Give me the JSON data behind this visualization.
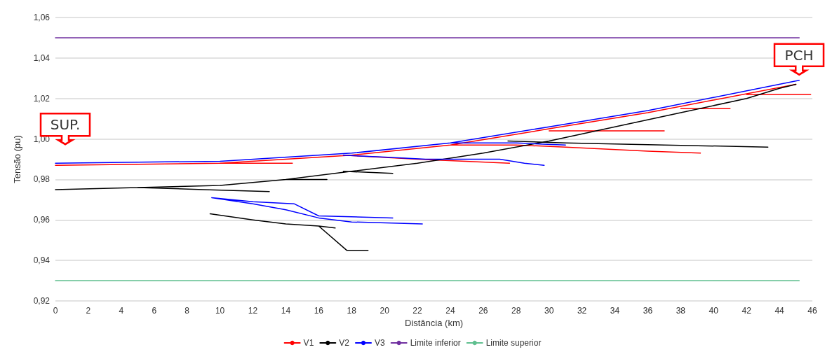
{
  "chart_data": {
    "type": "line",
    "xlabel": "Distância (km)",
    "ylabel": "Tensão (pu)",
    "xlim": [
      0,
      46
    ],
    "xticks": [
      0,
      2,
      4,
      6,
      8,
      10,
      12,
      14,
      16,
      18,
      20,
      22,
      24,
      26,
      28,
      30,
      32,
      34,
      36,
      38,
      40,
      42,
      44,
      46
    ],
    "ylim": [
      0.92,
      1.06
    ],
    "yticks": [
      {
        "value": 0.92,
        "label": "0,92"
      },
      {
        "value": 0.94,
        "label": "0,94"
      },
      {
        "value": 0.96,
        "label": "0,96"
      },
      {
        "value": 0.98,
        "label": "0,98"
      },
      {
        "value": 1.0,
        "label": "1,00"
      },
      {
        "value": 1.02,
        "label": "1,02"
      },
      {
        "value": 1.04,
        "label": "1,04"
      },
      {
        "value": 1.06,
        "label": "1,06"
      }
    ],
    "grid": "y",
    "legend": "bottom",
    "marker": "none",
    "line_style": "solid",
    "series": [
      {
        "name": "V1",
        "color": "#ff0000",
        "x": [
          0,
          10,
          14.4,
          null,
          10,
          18,
          24,
          30,
          36,
          45,
          null,
          17.5,
          22,
          27.6,
          null,
          24,
          28,
          31,
          36,
          39.2,
          null,
          30,
          37,
          null,
          38,
          41,
          null,
          42,
          45.9
        ],
        "values": [
          0.987,
          0.988,
          0.988,
          null,
          0.988,
          0.992,
          0.997,
          1.005,
          1.013,
          1.027,
          null,
          0.992,
          0.99,
          0.988,
          null,
          0.997,
          0.997,
          0.996,
          0.994,
          0.993,
          null,
          1.004,
          1.004,
          null,
          1.015,
          1.015,
          null,
          1.022,
          1.022
        ]
      },
      {
        "name": "V2",
        "color": "#000000",
        "x": [
          0,
          5,
          10,
          14,
          18,
          22,
          26,
          30,
          34,
          38,
          42,
          44,
          45,
          null,
          5,
          9,
          13,
          null,
          27.5,
          31,
          37,
          43.3,
          null,
          14,
          16.5,
          null,
          17.5,
          20.5,
          null,
          9.4,
          12,
          14,
          16,
          17,
          null,
          16,
          17.7,
          19
        ],
        "values": [
          0.975,
          0.976,
          0.977,
          0.98,
          0.984,
          0.988,
          0.993,
          0.999,
          1.006,
          1.013,
          1.02,
          1.025,
          1.027,
          null,
          0.976,
          0.975,
          0.974,
          null,
          0.999,
          0.998,
          0.997,
          0.996,
          null,
          0.98,
          0.98,
          null,
          0.984,
          0.983,
          null,
          0.963,
          0.96,
          0.958,
          0.957,
          0.956,
          null,
          0.957,
          0.945,
          0.945
        ]
      },
      {
        "name": "V3",
        "color": "#0000ff",
        "x": [
          0,
          10,
          18,
          24,
          30,
          36,
          45.2,
          null,
          17.5,
          20,
          22.5,
          27,
          28.5,
          29.7,
          null,
          24,
          28,
          31,
          null,
          9.5,
          12,
          14,
          16,
          18,
          22.3,
          null,
          9.5,
          12,
          14.5,
          16,
          20.5
        ],
        "values": [
          0.988,
          0.989,
          0.993,
          0.998,
          1.006,
          1.014,
          1.029,
          null,
          0.992,
          0.991,
          0.99,
          0.99,
          0.988,
          0.987,
          null,
          0.998,
          0.998,
          0.997,
          null,
          0.971,
          0.968,
          0.965,
          0.961,
          0.959,
          0.958,
          null,
          0.971,
          0.969,
          0.968,
          0.962,
          0.961
        ]
      },
      {
        "name": "Limite inferior",
        "color": "#7030a0",
        "x": [
          0,
          45.2
        ],
        "values": [
          1.05,
          1.05
        ]
      },
      {
        "name": "Limite superior",
        "color": "#5fbf8f",
        "x": [
          0,
          45.2
        ],
        "values": [
          0.93,
          0.93
        ]
      }
    ],
    "annotations": [
      "SUP.",
      "PCH"
    ]
  }
}
